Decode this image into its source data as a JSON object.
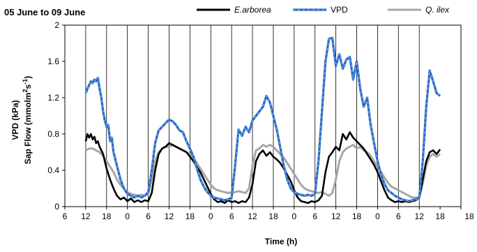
{
  "chart_data": {
    "type": "line",
    "title": "05 June to 09 June",
    "xlabel": "Time (h)",
    "ylabel_lines": [
      "VPD (kPa)",
      "Sap Flow (mmolm",
      "2",
      "s",
      "-1",
      ")"
    ],
    "ylim": [
      0,
      2
    ],
    "y_ticks": [
      0,
      0.4,
      0.8,
      1.2,
      1.6,
      2
    ],
    "y_tick_labels": [
      "0",
      "0.4",
      "0.8",
      "1.2",
      "1.6",
      "2"
    ],
    "x_unit": "hours elapsed",
    "xlim": [
      -6,
      108
    ],
    "x_ticks": [
      -6,
      0,
      6,
      12,
      18,
      24,
      30,
      36,
      42,
      48,
      54,
      60,
      66,
      72,
      78,
      84,
      90,
      96,
      102,
      108
    ],
    "x_tick_labels": [
      "6",
      "12",
      "18",
      "0",
      "6",
      "12",
      "18",
      "0",
      "6",
      "12",
      "18",
      "0",
      "6",
      "12",
      "18",
      "0",
      "6",
      "12",
      "18"
    ],
    "x_tick_label_positions": [
      -6,
      0,
      6,
      12,
      18,
      24,
      30,
      36,
      42,
      48,
      54,
      60,
      66,
      72,
      78,
      84,
      90,
      96,
      102
    ],
    "vertical_gridlines_x": [
      0,
      6,
      12,
      18,
      24,
      30,
      36,
      42,
      48,
      54,
      60,
      66,
      72,
      78,
      84,
      90,
      96
    ],
    "legend": {
      "placement": "top",
      "entries": [
        {
          "label": "E.arborea",
          "italic": true,
          "series": "E.arborea"
        },
        {
          "label": "VPD",
          "italic": false,
          "series": "VPD"
        },
        {
          "label": "Q. ilex",
          "italic": true,
          "series": "Q. ilex"
        }
      ]
    },
    "series": [
      {
        "name": "E.arborea",
        "color": "#000000",
        "x": [
          0,
          0.5,
          1,
          1.5,
          2,
          2.5,
          3,
          3.5,
          4,
          5,
          6,
          7,
          8,
          9,
          10,
          11,
          12,
          13,
          14,
          15,
          16,
          17,
          18,
          19,
          20,
          21,
          22,
          23,
          24,
          25,
          26,
          27,
          28,
          29,
          30,
          31,
          32,
          33,
          34,
          35,
          36,
          37,
          38,
          39,
          40,
          41,
          42,
          43,
          44,
          45,
          46,
          47,
          48,
          49,
          50,
          51,
          52,
          53,
          54,
          55,
          56,
          57,
          58,
          59,
          60,
          61,
          62,
          63,
          64,
          65,
          66,
          67,
          68,
          69,
          70,
          71,
          72,
          73,
          74,
          75,
          76,
          77,
          78,
          79,
          80,
          81,
          82,
          83,
          84,
          85,
          86,
          87,
          88,
          89,
          90,
          91,
          92,
          93,
          94,
          95,
          96
        ],
        "y": [
          0.72,
          0.8,
          0.76,
          0.8,
          0.74,
          0.77,
          0.7,
          0.72,
          0.66,
          0.58,
          0.42,
          0.3,
          0.2,
          0.12,
          0.08,
          0.1,
          0.06,
          0.09,
          0.05,
          0.07,
          0.05,
          0.07,
          0.06,
          0.15,
          0.4,
          0.58,
          0.64,
          0.66,
          0.7,
          0.68,
          0.66,
          0.64,
          0.62,
          0.6,
          0.55,
          0.5,
          0.44,
          0.38,
          0.3,
          0.22,
          0.14,
          0.08,
          0.05,
          0.06,
          0.04,
          0.07,
          0.05,
          0.06,
          0.04,
          0.06,
          0.05,
          0.1,
          0.25,
          0.5,
          0.58,
          0.62,
          0.56,
          0.6,
          0.55,
          0.52,
          0.48,
          0.42,
          0.35,
          0.28,
          0.18,
          0.1,
          0.06,
          0.05,
          0.04,
          0.06,
          0.05,
          0.07,
          0.12,
          0.38,
          0.55,
          0.6,
          0.66,
          0.62,
          0.8,
          0.74,
          0.82,
          0.76,
          0.72,
          0.68,
          0.64,
          0.58,
          0.52,
          0.46,
          0.38,
          0.28,
          0.18,
          0.1,
          0.07,
          0.05,
          0.06,
          0.05,
          0.06,
          0.05,
          0.06,
          0.07,
          0.1
        ],
        "x2": [
          96,
          97,
          98,
          99,
          100,
          101,
          102
        ],
        "y2": [
          0.1,
          0.3,
          0.5,
          0.6,
          0.62,
          0.58,
          0.63
        ]
      },
      {
        "name": "VPD",
        "color": "#2f64c6",
        "x": [
          0,
          0.5,
          1,
          1.5,
          2,
          2.5,
          3,
          3.5,
          4,
          4.5,
          5,
          5.5,
          6,
          6.5,
          7,
          7.5,
          8,
          9,
          10,
          11,
          12,
          13,
          14,
          15,
          16,
          17,
          18,
          19,
          20,
          21,
          22,
          23,
          24,
          25,
          26,
          27,
          28,
          29,
          30,
          31,
          32,
          33,
          34,
          35,
          36,
          37,
          38,
          39,
          40,
          41,
          42,
          43,
          44,
          45,
          46,
          47,
          48,
          49,
          50,
          51,
          52,
          53,
          54,
          55,
          56,
          57,
          58,
          59,
          60,
          61,
          62,
          63,
          64,
          65,
          66,
          67,
          68,
          69,
          70,
          71,
          72,
          73,
          74,
          75,
          76,
          77,
          78,
          79,
          80,
          81,
          82,
          83,
          84,
          85,
          86,
          87,
          88,
          89,
          90,
          91,
          92,
          93,
          94,
          95,
          96,
          97,
          98,
          99,
          100,
          101,
          102
        ],
        "y": [
          1.25,
          1.3,
          1.34,
          1.38,
          1.36,
          1.4,
          1.38,
          1.42,
          1.3,
          1.2,
          1.05,
          0.95,
          0.88,
          0.9,
          0.72,
          0.76,
          0.6,
          0.45,
          0.3,
          0.2,
          0.14,
          0.12,
          0.1,
          0.12,
          0.1,
          0.12,
          0.16,
          0.4,
          0.7,
          0.84,
          0.88,
          0.92,
          0.96,
          0.94,
          0.9,
          0.84,
          0.82,
          0.72,
          0.64,
          0.55,
          0.42,
          0.3,
          0.22,
          0.16,
          0.12,
          0.1,
          0.09,
          0.08,
          0.07,
          0.08,
          0.1,
          0.45,
          0.85,
          0.78,
          0.88,
          0.82,
          0.95,
          1.0,
          1.05,
          1.1,
          1.22,
          1.15,
          1.0,
          0.85,
          0.65,
          0.45,
          0.3,
          0.2,
          0.16,
          0.14,
          0.13,
          0.12,
          0.13,
          0.12,
          0.14,
          0.5,
          1.05,
          1.6,
          1.85,
          1.86,
          1.55,
          1.68,
          1.52,
          1.62,
          1.65,
          1.4,
          1.6,
          1.3,
          1.1,
          1.2,
          0.9,
          0.7,
          0.5,
          0.35,
          0.25,
          0.18,
          0.15,
          0.12,
          0.1,
          0.08,
          0.07,
          0.06,
          0.07,
          0.08,
          0.1,
          0.5,
          1.1,
          1.5,
          1.38,
          1.25,
          1.22
        ],
        "x_points_mode": true
      },
      {
        "name": "Q. ilex",
        "color": "#a6a6a6",
        "x": [
          0,
          1,
          2,
          3,
          4,
          5,
          6,
          7,
          8,
          9,
          10,
          11,
          12,
          13,
          14,
          15,
          16,
          17,
          18,
          19,
          20,
          21,
          22,
          23,
          24,
          25,
          26,
          27,
          28,
          29,
          30,
          31,
          32,
          33,
          34,
          35,
          36,
          37,
          38,
          39,
          40,
          41,
          42,
          43,
          44,
          45,
          46,
          47,
          48,
          49,
          50,
          51,
          52,
          53,
          54,
          55,
          56,
          57,
          58,
          59,
          60,
          61,
          62,
          63,
          64,
          65,
          66,
          67,
          68,
          69,
          70,
          71,
          72,
          73,
          74,
          75,
          76,
          77,
          78,
          79,
          80,
          81,
          82,
          83,
          84,
          85,
          86,
          87,
          88,
          89,
          90,
          91,
          92,
          93,
          94,
          95,
          96,
          97,
          98,
          99,
          100,
          101,
          102
        ],
        "y": [
          0.62,
          0.64,
          0.64,
          0.62,
          0.6,
          0.56,
          0.5,
          0.44,
          0.38,
          0.3,
          0.24,
          0.2,
          0.16,
          0.14,
          0.13,
          0.12,
          0.13,
          0.12,
          0.14,
          0.3,
          0.5,
          0.6,
          0.64,
          0.66,
          0.66,
          0.68,
          0.66,
          0.64,
          0.62,
          0.6,
          0.58,
          0.54,
          0.48,
          0.42,
          0.36,
          0.3,
          0.24,
          0.2,
          0.18,
          0.17,
          0.16,
          0.15,
          0.16,
          0.16,
          0.17,
          0.16,
          0.15,
          0.2,
          0.45,
          0.62,
          0.64,
          0.68,
          0.66,
          0.68,
          0.66,
          0.62,
          0.58,
          0.54,
          0.48,
          0.42,
          0.36,
          0.3,
          0.24,
          0.2,
          0.18,
          0.17,
          0.16,
          0.15,
          0.16,
          0.14,
          0.12,
          0.15,
          0.3,
          0.5,
          0.6,
          0.64,
          0.66,
          0.68,
          0.64,
          0.66,
          0.62,
          0.6,
          0.56,
          0.5,
          0.44,
          0.38,
          0.32,
          0.26,
          0.22,
          0.2,
          0.18,
          0.16,
          0.14,
          0.12,
          0.1,
          0.1,
          0.1,
          0.25,
          0.45,
          0.55,
          0.58,
          0.55,
          0.58
        ]
      }
    ]
  }
}
